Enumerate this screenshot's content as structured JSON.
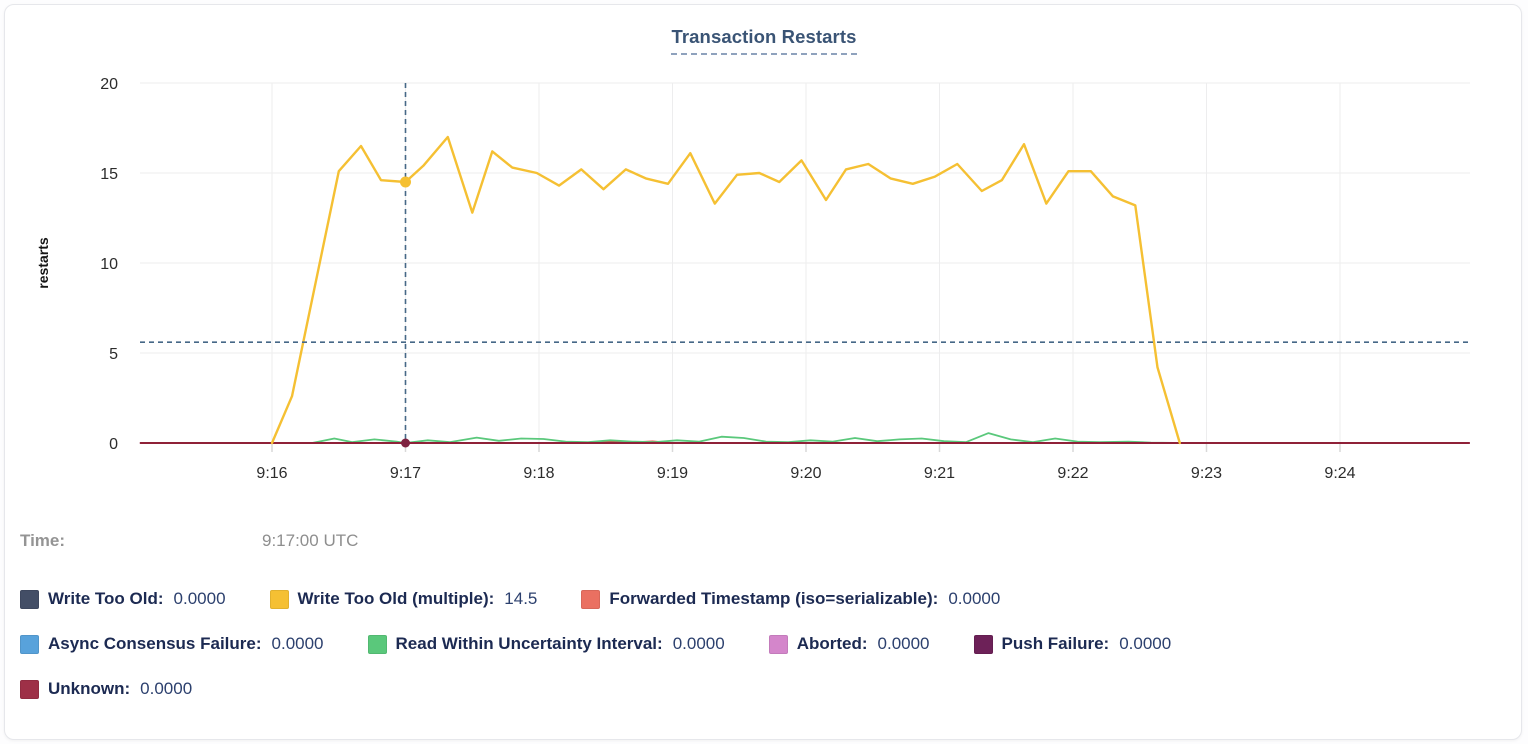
{
  "chart_header": {
    "title": "Transaction Restarts"
  },
  "hover_readout": {
    "time_label": "Time:",
    "time_value": "9:17:00 UTC"
  },
  "axes": {
    "y_label": "restarts",
    "y_ticks": [
      20,
      15,
      10,
      5,
      0
    ],
    "x_ticks": [
      "9:16",
      "9:17",
      "9:18",
      "9:19",
      "9:20",
      "9:21",
      "9:22",
      "9:23",
      "9:24"
    ]
  },
  "legend": {
    "rows": [
      [
        {
          "series": "write-too-old",
          "label": "Write Too Old:",
          "value": "0.0000",
          "color": "#434e66"
        },
        {
          "series": "write-too-old-multiple",
          "label": "Write Too Old (multiple):",
          "value": "14.5",
          "color": "#f5c033"
        },
        {
          "series": "forwarded-timestamp",
          "label": "Forwarded Timestamp (iso=serializable):",
          "value": "0.0000",
          "color": "#ea7061"
        }
      ],
      [
        {
          "series": "async-consensus-failure",
          "label": "Async Consensus Failure:",
          "value": "0.0000",
          "color": "#58a2db"
        },
        {
          "series": "read-within-uncertainty-interval",
          "label": "Read Within Uncertainty Interval:",
          "value": "0.0000",
          "color": "#5ac87b"
        },
        {
          "series": "aborted",
          "label": "Aborted:",
          "value": "0.0000",
          "color": "#d486cb"
        },
        {
          "series": "push-failure",
          "label": "Push Failure:",
          "value": "0.0000",
          "color": "#6d2158"
        }
      ],
      [
        {
          "series": "unknown",
          "label": "Unknown:",
          "value": "0.0000",
          "color": "#9e3047"
        }
      ]
    ]
  },
  "chart_data": {
    "type": "line",
    "title": "Transaction Restarts",
    "ylabel": "restarts",
    "ylim": [
      0,
      20
    ],
    "x_domain": [
      "9:15:00 UTC",
      "9:25:00 UTC"
    ],
    "x_tick_labels": [
      "9:16",
      "9:17",
      "9:18",
      "9:19",
      "9:20",
      "9:21",
      "9:22",
      "9:23",
      "9:24"
    ],
    "grid": true,
    "legend_position": "bottom",
    "points_format": "[seconds relative to 9:16:00, restarts]",
    "hover": {
      "time": "9:17:00 UTC",
      "crosshair_x_label": "9:17",
      "horizontal_value": 5.6,
      "highlight": {
        "series": "Write Too Old (multiple)",
        "value": 14.5
      }
    },
    "series": [
      {
        "name": "Write Too Old",
        "color": "#434e66",
        "points": [
          [
            -59,
            0
          ],
          [
            538,
            0
          ]
        ]
      },
      {
        "name": "Write Too Old (multiple)",
        "color": "#f5c033",
        "points": [
          [
            0,
            0
          ],
          [
            9,
            2.6
          ],
          [
            30,
            15.1
          ],
          [
            40,
            16.5
          ],
          [
            49,
            14.6
          ],
          [
            60,
            14.5
          ],
          [
            68,
            15.4
          ],
          [
            79,
            17.0
          ],
          [
            90,
            12.8
          ],
          [
            99,
            16.2
          ],
          [
            108,
            15.3
          ],
          [
            119,
            15.0
          ],
          [
            129,
            14.3
          ],
          [
            139,
            15.2
          ],
          [
            149,
            14.1
          ],
          [
            159,
            15.2
          ],
          [
            168,
            14.7
          ],
          [
            178,
            14.4
          ],
          [
            188,
            16.1
          ],
          [
            199,
            13.3
          ],
          [
            209,
            14.9
          ],
          [
            219,
            15.0
          ],
          [
            228,
            14.5
          ],
          [
            238,
            15.7
          ],
          [
            249,
            13.5
          ],
          [
            258,
            15.2
          ],
          [
            268,
            15.5
          ],
          [
            278,
            14.7
          ],
          [
            288,
            14.4
          ],
          [
            298,
            14.8
          ],
          [
            308,
            15.5
          ],
          [
            319,
            14.0
          ],
          [
            328,
            14.6
          ],
          [
            338,
            16.6
          ],
          [
            348,
            13.3
          ],
          [
            358,
            15.1
          ],
          [
            368,
            15.1
          ],
          [
            378,
            13.7
          ],
          [
            388,
            13.2
          ],
          [
            398,
            4.2
          ],
          [
            408,
            0
          ]
        ]
      },
      {
        "name": "Forwarded Timestamp (iso=serializable)",
        "color": "#ea7061",
        "line_color": "#d94f44",
        "points": [
          [
            -59,
            0
          ],
          [
            145,
            0
          ],
          [
            155,
            0.1
          ],
          [
            163,
            0.04
          ],
          [
            171,
            0.09
          ],
          [
            180,
            0
          ],
          [
            538,
            0
          ]
        ]
      },
      {
        "name": "Async Consensus Failure",
        "color": "#58a2db",
        "points": [
          [
            -59,
            0
          ],
          [
            538,
            0
          ]
        ]
      },
      {
        "name": "Read Within Uncertainty Interval",
        "color": "#5ac87b",
        "points": [
          [
            18,
            0
          ],
          [
            28,
            0.25
          ],
          [
            36,
            0.05
          ],
          [
            46,
            0.2
          ],
          [
            56,
            0.08
          ],
          [
            60,
            0
          ],
          [
            70,
            0.15
          ],
          [
            80,
            0.05
          ],
          [
            92,
            0.3
          ],
          [
            102,
            0.12
          ],
          [
            112,
            0.25
          ],
          [
            122,
            0.22
          ],
          [
            132,
            0.08
          ],
          [
            142,
            0.05
          ],
          [
            152,
            0.15
          ],
          [
            162,
            0.08
          ],
          [
            172,
            0.05
          ],
          [
            182,
            0.15
          ],
          [
            192,
            0.08
          ],
          [
            202,
            0.35
          ],
          [
            212,
            0.28
          ],
          [
            222,
            0.08
          ],
          [
            232,
            0.05
          ],
          [
            242,
            0.15
          ],
          [
            252,
            0.08
          ],
          [
            262,
            0.28
          ],
          [
            272,
            0.1
          ],
          [
            282,
            0.2
          ],
          [
            292,
            0.25
          ],
          [
            302,
            0.1
          ],
          [
            312,
            0.05
          ],
          [
            322,
            0.55
          ],
          [
            332,
            0.2
          ],
          [
            342,
            0.05
          ],
          [
            352,
            0.25
          ],
          [
            362,
            0.08
          ],
          [
            372,
            0.05
          ],
          [
            385,
            0.08
          ],
          [
            395,
            0.02
          ],
          [
            410,
            0
          ]
        ]
      },
      {
        "name": "Aborted",
        "color": "#d486cb",
        "points": [
          [
            -59,
            0
          ],
          [
            538,
            0
          ]
        ]
      },
      {
        "name": "Push Failure",
        "color": "#6d2158",
        "points": [
          [
            -59,
            0
          ],
          [
            538,
            0
          ]
        ]
      },
      {
        "name": "Unknown",
        "color": "#9e3047",
        "line_color": "#8f2138",
        "points": [
          [
            -59,
            0
          ],
          [
            538,
            0
          ]
        ]
      }
    ],
    "draw_order": [
      "Write Too Old",
      "Async Consensus Failure",
      "Aborted",
      "Push Failure",
      "Forwarded Timestamp (iso=serializable)",
      "Read Within Uncertainty Interval",
      "Unknown",
      "Write Too Old (multiple)"
    ]
  },
  "colors": {
    "grid": "#ededee",
    "axis_tick_mark": "#d9d9d9",
    "crosshair": "#466887",
    "hover_dot_zero": "#7e2240"
  }
}
